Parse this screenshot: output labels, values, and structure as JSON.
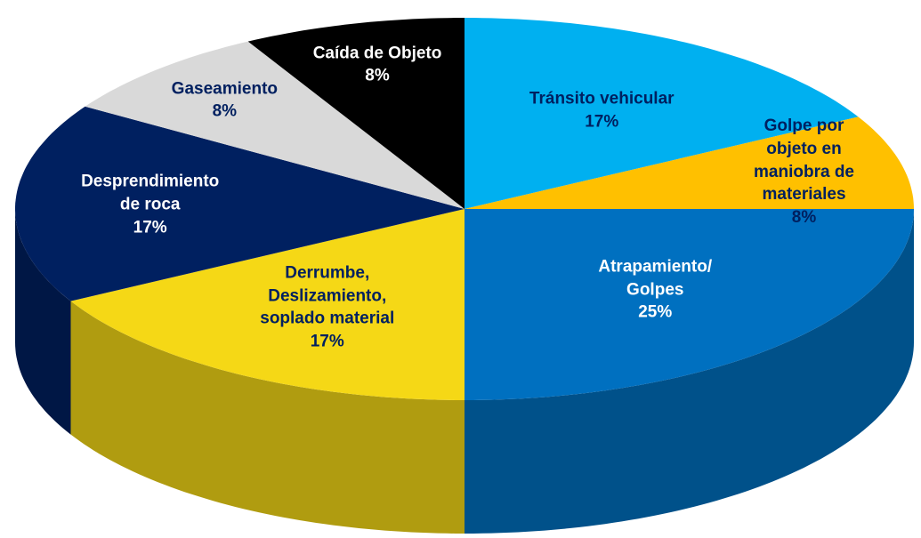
{
  "chart_data": {
    "type": "pie",
    "categories": [
      "Tránsito vehicular",
      "Golpe por objeto en\nmaniobra de materiales",
      "Atrapamiento/\nGolpes",
      "Derrumbe,\nDeslizamiento,\nsoplado material",
      "Desprendimiento\nde roca",
      "Gaseamiento",
      "Caída de Objeto"
    ],
    "values": [
      17,
      8,
      25,
      17,
      17,
      8,
      8
    ],
    "value_labels": [
      "17%",
      "8%",
      "25%",
      "17%",
      "17%",
      "8%",
      "8%"
    ],
    "colors": [
      "#00b0f0",
      "#ffc000",
      "#0070c0",
      "#f5d816",
      "#002060",
      "#d9d9d9",
      "#000000"
    ],
    "label_colors": [
      "#002060",
      "#002060",
      "#ffffff",
      "#002060",
      "#ffffff",
      "#002060",
      "#ffffff"
    ]
  }
}
